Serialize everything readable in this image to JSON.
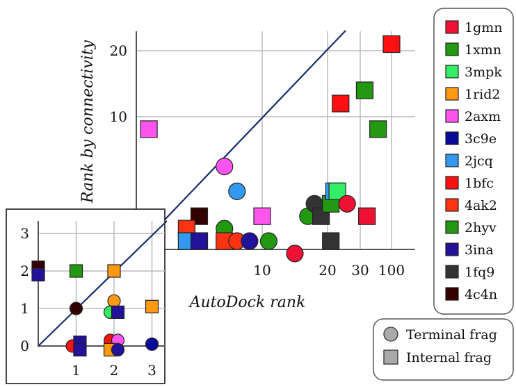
{
  "chart_data": [
    {
      "type": "scatter",
      "name": "main",
      "xlabel": "AutoDock rank",
      "ylabel": "Rank by connectivity",
      "x_scale": "nonlinear",
      "x_ticks": [
        "10",
        "20",
        "30",
        "100"
      ],
      "y_ticks": [
        "10",
        "20"
      ],
      "grid": true,
      "diagonal_line": true,
      "points": [
        {
          "ligand": "2axm",
          "shape": "square",
          "x": 1,
          "y": 9
        },
        {
          "ligand": "2axm",
          "shape": "circle",
          "x": 7,
          "y": 6
        },
        {
          "ligand": "2jcq",
          "shape": "circle",
          "x": 8,
          "y": 4
        },
        {
          "ligand": "2axm",
          "shape": "square",
          "x": 10,
          "y": 2
        },
        {
          "ligand": "4c4n",
          "shape": "square",
          "x": 5,
          "y": 2
        },
        {
          "ligand": "4ak2",
          "shape": "square",
          "x": 4,
          "y": 1
        },
        {
          "ligand": "2jcq",
          "shape": "square",
          "x": 4,
          "y": 0
        },
        {
          "ligand": "3ina",
          "shape": "square",
          "x": 5,
          "y": 0
        },
        {
          "ligand": "2hyv",
          "shape": "circle",
          "x": 7,
          "y": 1
        },
        {
          "ligand": "4ak2",
          "shape": "square",
          "x": 7,
          "y": 0
        },
        {
          "ligand": "4ak2",
          "shape": "circle",
          "x": 8,
          "y": 0
        },
        {
          "ligand": "3ina",
          "shape": "circle",
          "x": 9,
          "y": 0
        },
        {
          "ligand": "2hyv",
          "shape": "circle",
          "x": 11,
          "y": 0
        },
        {
          "ligand": "1gmn",
          "shape": "circle",
          "x": 15,
          "y": -1
        },
        {
          "ligand": "2hyv",
          "shape": "circle",
          "x": 17,
          "y": 2
        },
        {
          "ligand": "1fq9",
          "shape": "circle",
          "x": 18,
          "y": 3
        },
        {
          "ligand": "1fq9",
          "shape": "square",
          "x": 19,
          "y": 2
        },
        {
          "ligand": "2hyv",
          "shape": "square",
          "x": 21,
          "y": 3
        },
        {
          "ligand": "1fq9",
          "shape": "square",
          "x": 21,
          "y": 0
        },
        {
          "ligand": "2jcq",
          "shape": "square",
          "x": 22,
          "y": 4
        },
        {
          "ligand": "3mpk",
          "shape": "square",
          "x": 23,
          "y": 4
        },
        {
          "ligand": "1gmn",
          "shape": "circle",
          "x": 26,
          "y": 3
        },
        {
          "ligand": "1bfc",
          "shape": "square",
          "x": 24,
          "y": 12
        },
        {
          "ligand": "2hyv",
          "shape": "square",
          "x": 40,
          "y": 14
        },
        {
          "ligand": "2hyv",
          "shape": "square",
          "x": 70,
          "y": 9
        },
        {
          "ligand": "1gmn",
          "shape": "square",
          "x": 45,
          "y": 2
        },
        {
          "ligand": "1bfc",
          "shape": "square",
          "x": 100,
          "y": 21
        }
      ]
    },
    {
      "type": "scatter",
      "name": "inset",
      "xlim": [
        0,
        3.3
      ],
      "ylim": [
        0,
        3.3
      ],
      "x_ticks": [
        "1",
        "2",
        "3"
      ],
      "y_ticks": [
        "0",
        "1",
        "2",
        "3"
      ],
      "grid": true,
      "diagonal_line": true,
      "points": [
        {
          "ligand": "4c4n",
          "shape": "square",
          "x": 0,
          "y": 2.1
        },
        {
          "ligand": "3ina",
          "shape": "square",
          "x": 0,
          "y": 1.9
        },
        {
          "ligand": "2hyv",
          "shape": "square",
          "x": 1,
          "y": 2
        },
        {
          "ligand": "1rid2",
          "shape": "square",
          "x": 2,
          "y": 2
        },
        {
          "ligand": "4c4n",
          "shape": "circle",
          "x": 1,
          "y": 1
        },
        {
          "ligand": "1rid2",
          "shape": "circle",
          "x": 2,
          "y": 1.2
        },
        {
          "ligand": "3mpk",
          "shape": "circle",
          "x": 1.9,
          "y": 0.9
        },
        {
          "ligand": "3ina",
          "shape": "square",
          "x": 2.1,
          "y": 0.9
        },
        {
          "ligand": "1rid2",
          "shape": "square",
          "x": 3,
          "y": 1.05
        },
        {
          "ligand": "1bfc",
          "shape": "circle",
          "x": 0.9,
          "y": 0
        },
        {
          "ligand": "3ina",
          "shape": "square",
          "x": 1.1,
          "y": 0.1
        },
        {
          "ligand": "3ina",
          "shape": "square",
          "x": 1.1,
          "y": -0.1
        },
        {
          "ligand": "1bfc",
          "shape": "circle",
          "x": 1.9,
          "y": 0.15
        },
        {
          "ligand": "2axm",
          "shape": "circle",
          "x": 2.1,
          "y": 0.15
        },
        {
          "ligand": "1rid2",
          "shape": "square",
          "x": 1.9,
          "y": -0.1
        },
        {
          "ligand": "3ina",
          "shape": "circle",
          "x": 2.1,
          "y": -0.1
        },
        {
          "ligand": "3c9e",
          "shape": "circle",
          "x": 3,
          "y": 0.05
        }
      ]
    }
  ],
  "legend": {
    "items": [
      {
        "label": "1gmn",
        "color": "#ee1133"
      },
      {
        "label": "1xmn",
        "color": "#229911"
      },
      {
        "label": "3mpk",
        "color": "#33ee66"
      },
      {
        "label": "1rid2",
        "color": "#ff9911"
      },
      {
        "label": "2axm",
        "color": "#ff55ee"
      },
      {
        "label": "3c9e",
        "color": "#0a0a99"
      },
      {
        "label": "2jcq",
        "color": "#3399ee"
      },
      {
        "label": "1bfc",
        "color": "#ff1111"
      },
      {
        "label": "4ak2",
        "color": "#ff3311"
      },
      {
        "label": "2hyv",
        "color": "#229911"
      },
      {
        "label": "3ina",
        "color": "#221199"
      },
      {
        "label": "1fq9",
        "color": "#333333"
      },
      {
        "label": "4c4n",
        "color": "#330000"
      }
    ],
    "shape_items": [
      {
        "label": "Terminal frag",
        "shape": "circle",
        "color": "#aaaaaa"
      },
      {
        "label": "Internal frag",
        "shape": "square",
        "color": "#aaaaaa"
      }
    ]
  }
}
